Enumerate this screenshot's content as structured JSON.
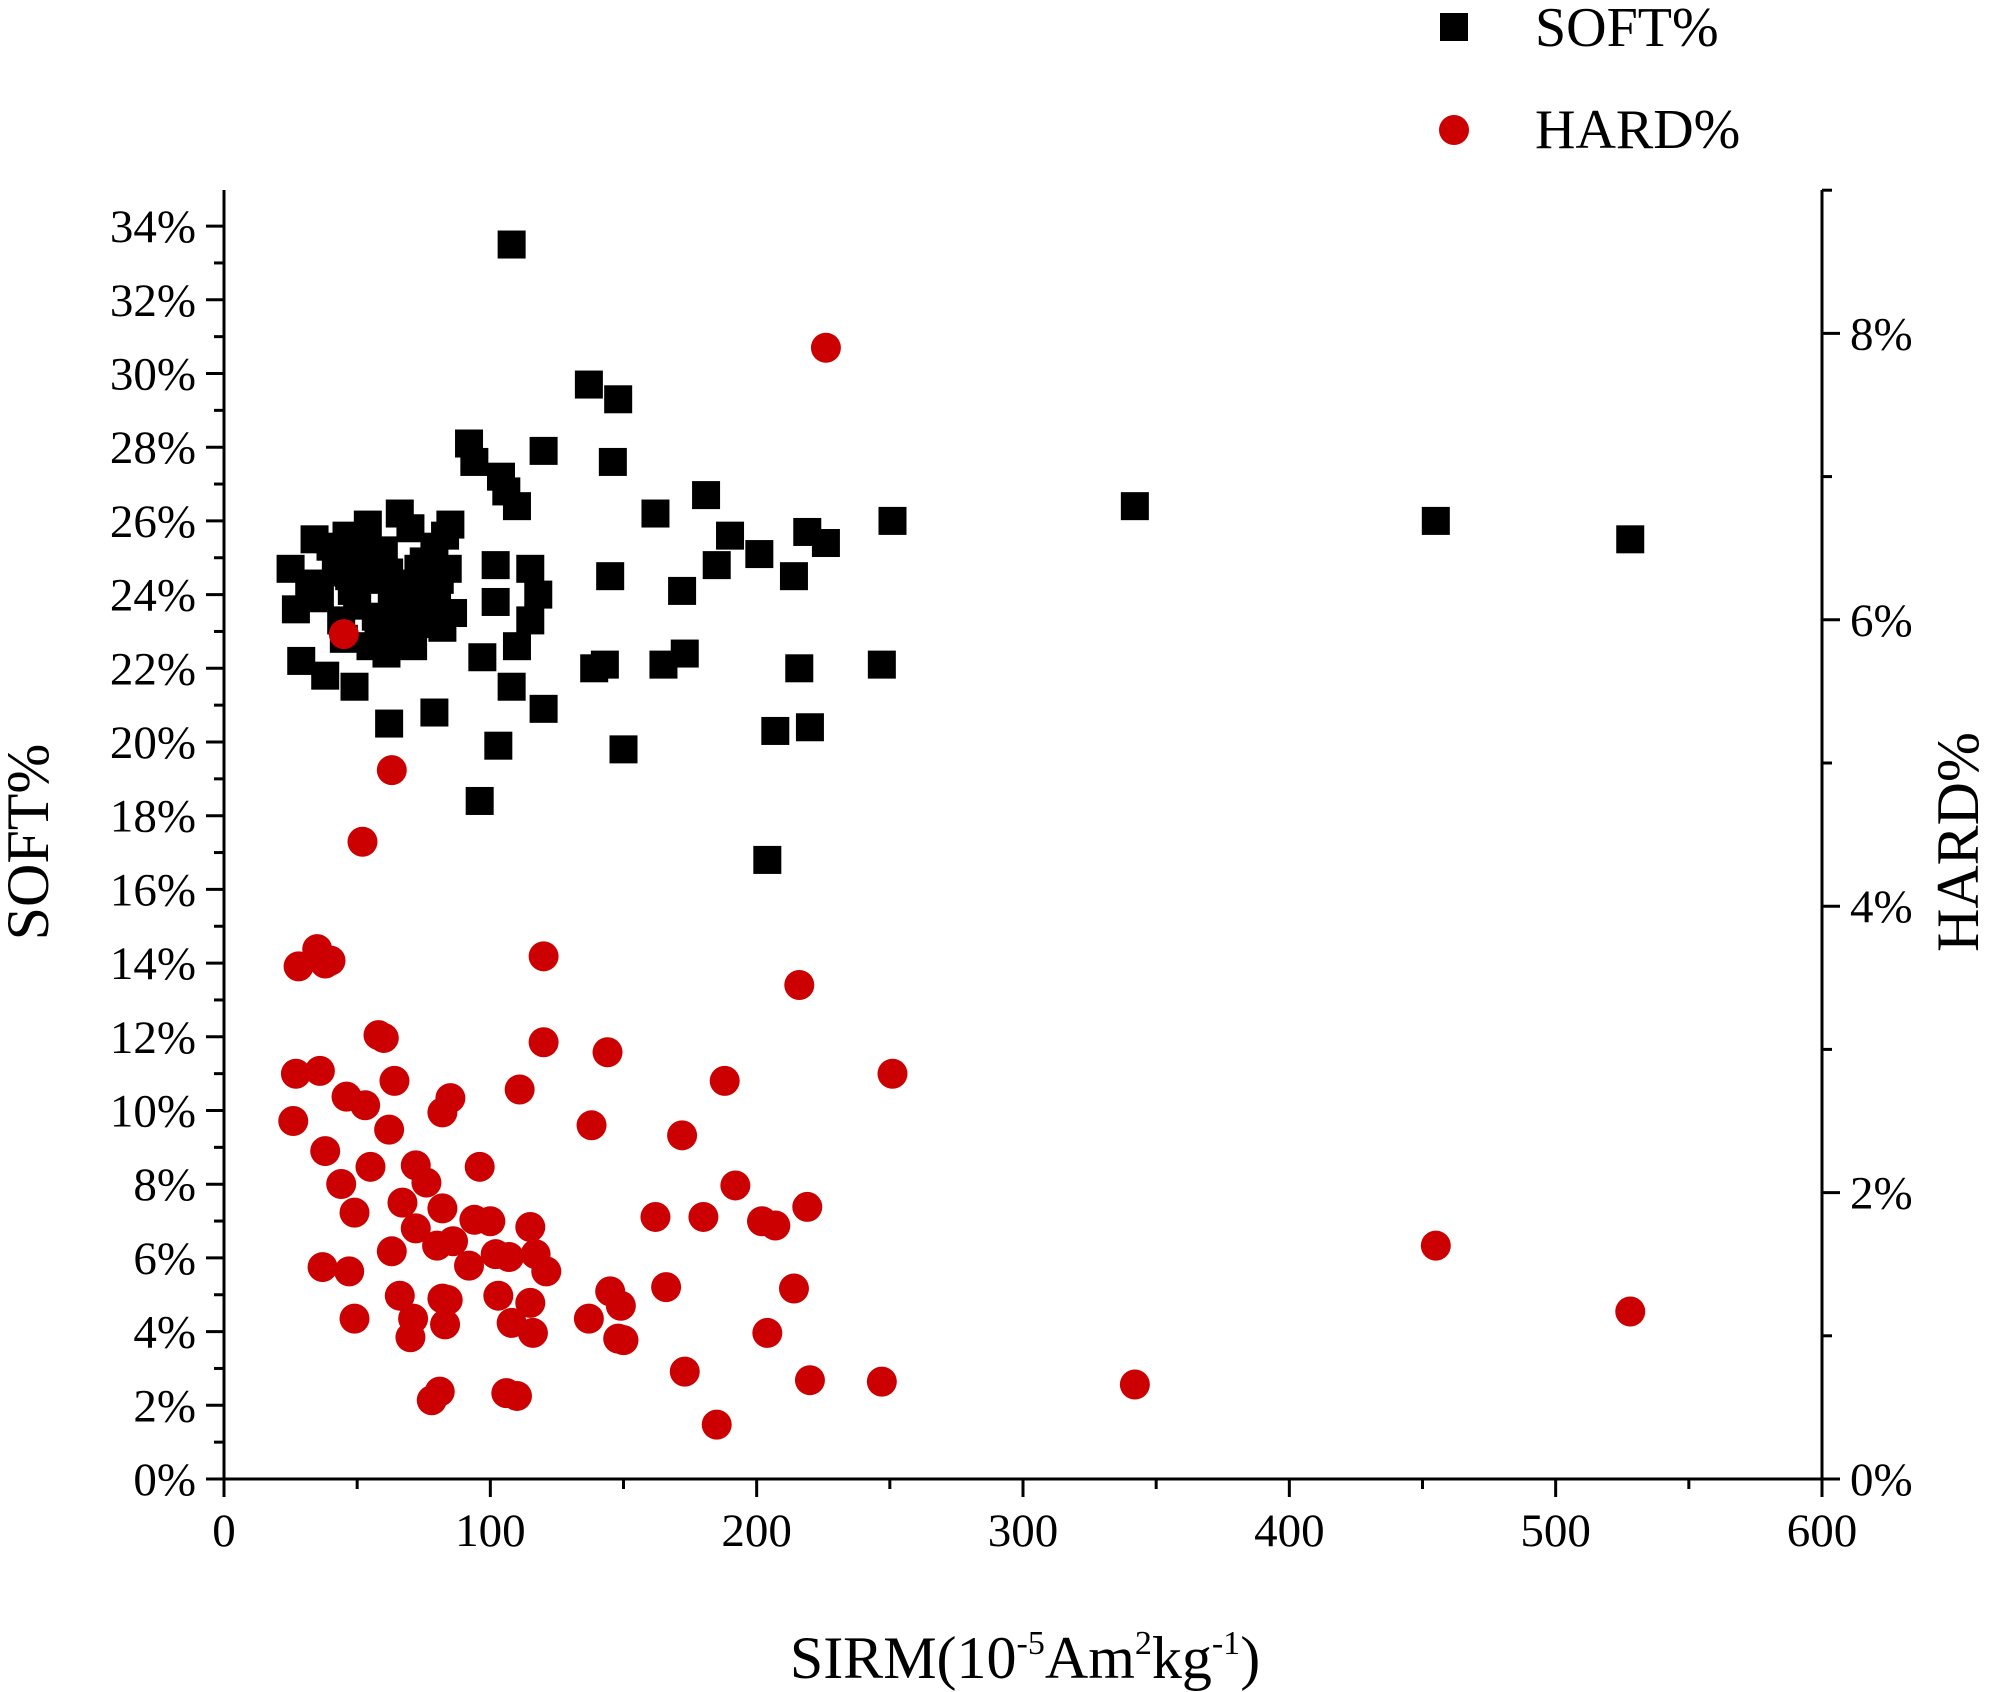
{
  "chart_data": {
    "type": "scatter",
    "xlabel": {
      "main": "SIRM(10",
      "sup1": "-5",
      "mid1": "Am",
      "sup2": "2",
      "mid2": "kg",
      "sup3": "-1",
      "end": ")"
    },
    "ylabel_left": "SOFT%",
    "ylabel_right": "HARD%",
    "xlim": [
      0,
      600
    ],
    "ylim_left": [
      0,
      35
    ],
    "ylim_right": [
      0,
      9
    ],
    "x_ticks": [
      "0",
      "100",
      "200",
      "300",
      "400",
      "500",
      "600"
    ],
    "y_left_ticks": [
      "0%",
      "2%",
      "4%",
      "6%",
      "8%",
      "10%",
      "12%",
      "14%",
      "16%",
      "18%",
      "20%",
      "22%",
      "24%",
      "26%",
      "28%",
      "30%",
      "32%",
      "34%"
    ],
    "y_right_ticks": [
      "0%",
      "2%",
      "4%",
      "6%",
      "8%"
    ],
    "legend": [
      {
        "label": "SOFT%",
        "marker": "square",
        "color": "#000000"
      },
      {
        "label": "HARD%",
        "marker": "circle",
        "color": "#cc0000"
      }
    ],
    "series": [
      {
        "name": "SOFT%",
        "axis": "left",
        "marker": "square",
        "color": "#000000",
        "points": [
          [
            108,
            33.5
          ],
          [
            137,
            29.7
          ],
          [
            148,
            29.3
          ],
          [
            92,
            28.1
          ],
          [
            94,
            27.6
          ],
          [
            120,
            27.9
          ],
          [
            146,
            27.6
          ],
          [
            104,
            27.2
          ],
          [
            106,
            26.8
          ],
          [
            110,
            26.4
          ],
          [
            181,
            26.7
          ],
          [
            162,
            26.2
          ],
          [
            342,
            26.4
          ],
          [
            455,
            26.0
          ],
          [
            251,
            26.0
          ],
          [
            528,
            25.5
          ],
          [
            226,
            25.4
          ],
          [
            219,
            25.7
          ],
          [
            190,
            25.6
          ],
          [
            185,
            24.8
          ],
          [
            201,
            25.1
          ],
          [
            214,
            24.5
          ],
          [
            172,
            24.1
          ],
          [
            145,
            24.5
          ],
          [
            102,
            24.8
          ],
          [
            102,
            23.8
          ],
          [
            115,
            24.7
          ],
          [
            118,
            24.0
          ],
          [
            115,
            23.3
          ],
          [
            110,
            22.6
          ],
          [
            97,
            22.3
          ],
          [
            173,
            22.4
          ],
          [
            165,
            22.1
          ],
          [
            143,
            22.1
          ],
          [
            139,
            22.0
          ],
          [
            247,
            22.1
          ],
          [
            216,
            22.0
          ],
          [
            108,
            21.5
          ],
          [
            120,
            20.9
          ],
          [
            79,
            20.8
          ],
          [
            62,
            20.5
          ],
          [
            103,
            19.9
          ],
          [
            150,
            19.8
          ],
          [
            207,
            20.3
          ],
          [
            220,
            20.4
          ],
          [
            96,
            18.4
          ],
          [
            204,
            16.8
          ],
          [
            25,
            24.7
          ],
          [
            27,
            23.6
          ],
          [
            29,
            22.2
          ],
          [
            32,
            24.3
          ],
          [
            34,
            25.5
          ],
          [
            36,
            23.9
          ],
          [
            38,
            21.8
          ],
          [
            40,
            25.3
          ],
          [
            42,
            24.6
          ],
          [
            44,
            23.3
          ],
          [
            45,
            22.8
          ],
          [
            46,
            25.6
          ],
          [
            48,
            24.1
          ],
          [
            49,
            21.5
          ],
          [
            50,
            23.7
          ],
          [
            52,
            24.9
          ],
          [
            54,
            25.9
          ],
          [
            55,
            22.6
          ],
          [
            56,
            24.4
          ],
          [
            58,
            23.1
          ],
          [
            60,
            25.2
          ],
          [
            61,
            22.4
          ],
          [
            62,
            24.6
          ],
          [
            64,
            23.5
          ],
          [
            66,
            26.2
          ],
          [
            67,
            24.0
          ],
          [
            68,
            23.0
          ],
          [
            70,
            25.8
          ],
          [
            71,
            22.6
          ],
          [
            72,
            24.3
          ],
          [
            74,
            23.6
          ],
          [
            75,
            24.9
          ],
          [
            76,
            23.2
          ],
          [
            78,
            24.1
          ],
          [
            79,
            25.3
          ],
          [
            80,
            23.8
          ],
          [
            81,
            24.4
          ],
          [
            82,
            23.1
          ],
          [
            83,
            25.6
          ],
          [
            84,
            24.7
          ],
          [
            85,
            25.9
          ],
          [
            86,
            23.5
          ],
          [
            44,
            25.1
          ],
          [
            53,
            25.4
          ],
          [
            63,
            24.0
          ],
          [
            69,
            23.9
          ],
          [
            77,
            23.6
          ],
          [
            73,
            24.7
          ],
          [
            57,
            23.4
          ],
          [
            47,
            24.5
          ]
        ]
      },
      {
        "name": "HARD%",
        "axis": "right",
        "marker": "circle",
        "color": "#cc0000",
        "points": [
          [
            45,
            5.9
          ],
          [
            226,
            7.9
          ],
          [
            63,
            4.95
          ],
          [
            52,
            4.45
          ],
          [
            120,
            3.65
          ],
          [
            35,
            3.7
          ],
          [
            38,
            3.6
          ],
          [
            40,
            3.62
          ],
          [
            28,
            3.58
          ],
          [
            216,
            3.45
          ],
          [
            58,
            3.1
          ],
          [
            120,
            3.05
          ],
          [
            144,
            2.98
          ],
          [
            36,
            2.85
          ],
          [
            27,
            2.83
          ],
          [
            60,
            3.08
          ],
          [
            64,
            2.78
          ],
          [
            251,
            2.83
          ],
          [
            188,
            2.78
          ],
          [
            111,
            2.72
          ],
          [
            46,
            2.67
          ],
          [
            53,
            2.61
          ],
          [
            85,
            2.66
          ],
          [
            82,
            2.56
          ],
          [
            26,
            2.5
          ],
          [
            62,
            2.44
          ],
          [
            138,
            2.47
          ],
          [
            172,
            2.4
          ],
          [
            38,
            2.29
          ],
          [
            55,
            2.18
          ],
          [
            72,
            2.19
          ],
          [
            96,
            2.18
          ],
          [
            44,
            2.06
          ],
          [
            76,
            2.07
          ],
          [
            192,
            2.05
          ],
          [
            67,
            1.93
          ],
          [
            82,
            1.89
          ],
          [
            219,
            1.9
          ],
          [
            49,
            1.86
          ],
          [
            94,
            1.81
          ],
          [
            100,
            1.8
          ],
          [
            162,
            1.83
          ],
          [
            180,
            1.83
          ],
          [
            202,
            1.8
          ],
          [
            207,
            1.77
          ],
          [
            72,
            1.75
          ],
          [
            86,
            1.66
          ],
          [
            115,
            1.76
          ],
          [
            80,
            1.63
          ],
          [
            63,
            1.59
          ],
          [
            102,
            1.57
          ],
          [
            107,
            1.55
          ],
          [
            117,
            1.57
          ],
          [
            455,
            1.63
          ],
          [
            37,
            1.48
          ],
          [
            47,
            1.45
          ],
          [
            92,
            1.49
          ],
          [
            121,
            1.45
          ],
          [
            103,
            1.28
          ],
          [
            145,
            1.31
          ],
          [
            66,
            1.28
          ],
          [
            82,
            1.26
          ],
          [
            84,
            1.25
          ],
          [
            115,
            1.23
          ],
          [
            214,
            1.33
          ],
          [
            166,
            1.34
          ],
          [
            149,
            1.21
          ],
          [
            528,
            1.17
          ],
          [
            49,
            1.12
          ],
          [
            71,
            1.12
          ],
          [
            83,
            1.08
          ],
          [
            108,
            1.09
          ],
          [
            137,
            1.12
          ],
          [
            116,
            1.02
          ],
          [
            148,
            0.98
          ],
          [
            150,
            0.97
          ],
          [
            204,
            1.02
          ],
          [
            70,
            0.99
          ],
          [
            173,
            0.75
          ],
          [
            220,
            0.69
          ],
          [
            247,
            0.68
          ],
          [
            342,
            0.66
          ],
          [
            81,
            0.61
          ],
          [
            78,
            0.55
          ],
          [
            106,
            0.6
          ],
          [
            110,
            0.58
          ],
          [
            185,
            0.38
          ]
        ]
      }
    ]
  }
}
